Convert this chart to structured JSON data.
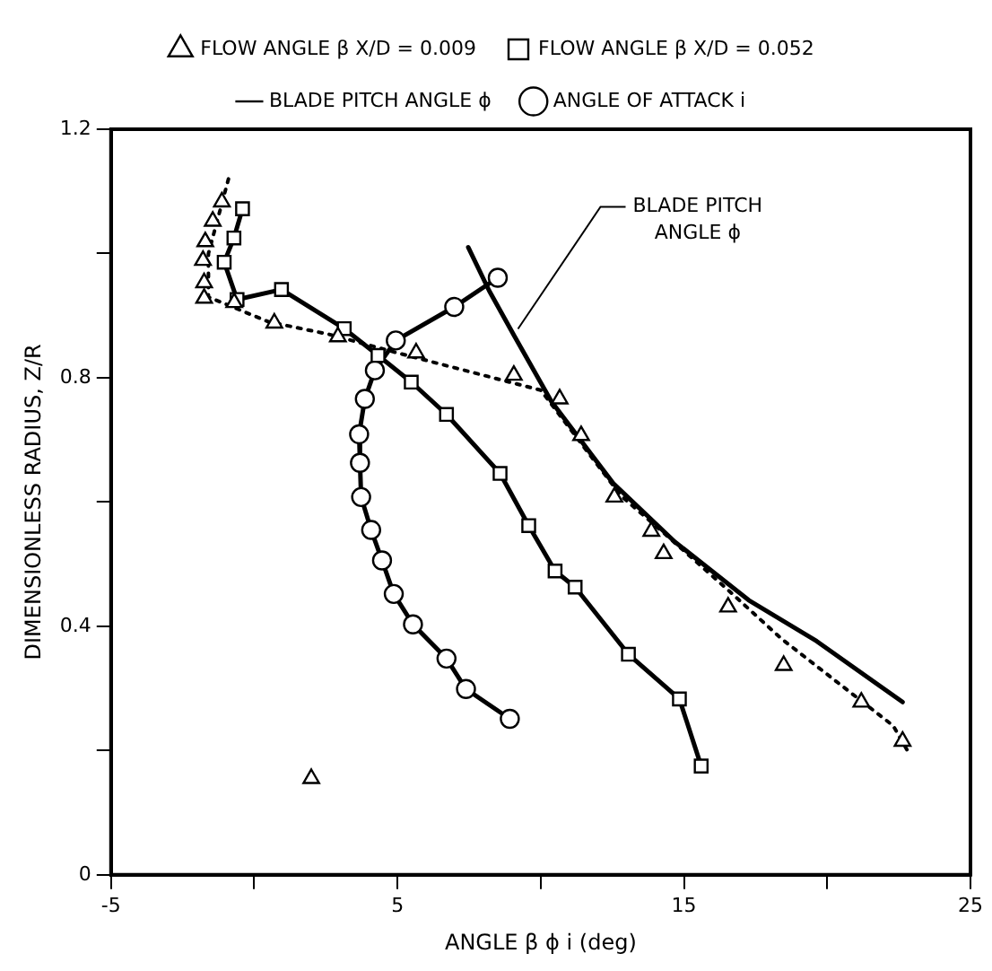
{
  "chart_data": {
    "type": "line",
    "xlabel": "ANGLE β ϕ i (deg)",
    "ylabel": "DIMENSIONLESS RADIUS, Z/R",
    "xlim": [
      -5,
      25
    ],
    "ylim": [
      0,
      1.2
    ],
    "xticks": [
      -5,
      {
        "value": 0,
        "label": null
      },
      5,
      {
        "value": 10,
        "label": null
      },
      15,
      {
        "value": 20,
        "label": null
      },
      25
    ],
    "yticks": [
      0,
      {
        "value": 0.2,
        "label": null
      },
      0.4,
      {
        "value": 0.6,
        "label": null
      },
      0.8,
      {
        "value": 1.0,
        "label": null
      },
      1.2
    ],
    "grid": false,
    "legend": "top",
    "series": [
      {
        "name": "FLOW ANGLE β X/D = 0.052",
        "color": "#000000",
        "marker": "square",
        "line_style": "solid",
        "x": [
          -0.41,
          -0.71,
          -1.05,
          -0.6,
          0.95,
          3.14,
          4.32,
          5.48,
          6.71,
          8.58,
          9.58,
          10.5,
          11.2,
          13.06,
          14.84,
          15.6
        ],
        "values": [
          1.072,
          1.025,
          0.986,
          0.926,
          0.942,
          0.879,
          0.836,
          0.793,
          0.741,
          0.646,
          0.562,
          0.489,
          0.463,
          0.355,
          0.283,
          0.175
        ]
      },
      {
        "name": "FLOW ANGLE β X/D = 0.009",
        "type": "scatter",
        "color": "#000000",
        "marker": "triangle",
        "x": [
          -1.13,
          -1.45,
          -1.71,
          -1.79,
          -1.75,
          -1.75,
          -0.7,
          0.7,
          2.92,
          5.65,
          9.06,
          10.66,
          11.41,
          12.57,
          13.86,
          14.29,
          16.54,
          18.48,
          21.19,
          22.63,
          1.99
        ],
        "values": [
          1.083,
          1.052,
          1.019,
          0.989,
          0.953,
          0.928,
          0.921,
          0.888,
          0.866,
          0.84,
          0.804,
          0.766,
          0.707,
          0.608,
          0.553,
          0.517,
          0.431,
          0.337,
          0.278,
          0.215,
          0.155
        ]
      },
      {
        "name": "BLADE PITCH ANGLE ϕ",
        "color": "#000000",
        "marker": "none",
        "line_style": "solid",
        "x": [
          7.47,
          8.2,
          9.08,
          10.37,
          12.53,
          14.68,
          17.26,
          19.63,
          22.63
        ],
        "values": [
          1.01,
          0.94,
          0.867,
          0.762,
          0.63,
          0.536,
          0.442,
          0.376,
          0.278
        ]
      },
      {
        "name": "ANGLE OF ATTACK i",
        "color": "#000000",
        "marker": "circle",
        "line_style": "solid",
        "x": [
          8.5,
          6.98,
          4.94,
          4.21,
          3.86,
          3.66,
          3.69,
          3.73,
          4.08,
          4.46,
          4.87,
          5.54,
          6.71,
          7.39,
          8.92
        ],
        "values": [
          0.961,
          0.914,
          0.86,
          0.812,
          0.766,
          0.709,
          0.663,
          0.608,
          0.555,
          0.506,
          0.452,
          0.403,
          0.348,
          0.299,
          0.251
        ]
      },
      {
        "color": "#000000",
        "marker": "none",
        "line_style": "dotted",
        "x": [
          -0.9,
          -1.6,
          -1.6,
          0.5,
          2.6,
          5.0,
          10.0,
          12.8,
          14.3,
          16.5,
          18.4,
          22.3,
          22.8
        ],
        "values": [
          1.12,
          1.0,
          0.93,
          0.89,
          0.87,
          0.84,
          0.78,
          0.61,
          0.55,
          0.46,
          0.38,
          0.24,
          0.2
        ]
      }
    ],
    "annotations": [
      {
        "text": "BLADE PITCH ANGLE ϕ",
        "x": 9.08,
        "y": 0.867
      }
    ]
  }
}
